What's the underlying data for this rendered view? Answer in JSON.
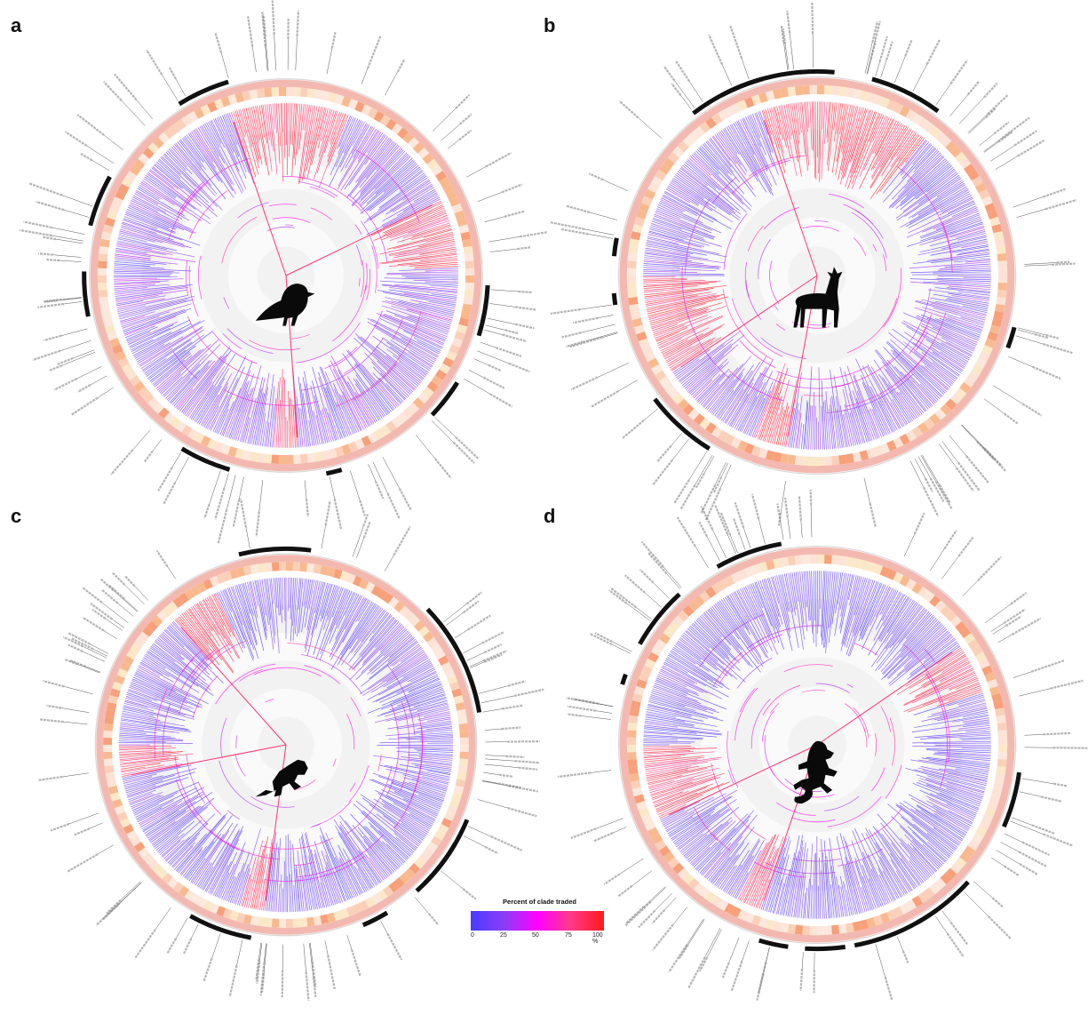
{
  "panels": [
    {
      "letter": "a",
      "animal": "bird-icon"
    },
    {
      "letter": "b",
      "animal": "deer-icon"
    },
    {
      "letter": "c",
      "animal": "frog-icon"
    },
    {
      "letter": "d",
      "animal": "lizard-icon"
    }
  ],
  "legend": {
    "title": "Percent of clade traded",
    "ticks": [
      "0",
      "25",
      "50",
      "75",
      "100 %"
    ],
    "colors": [
      "#4a3cff",
      "#8a3ef5",
      "#ff00ff",
      "#ff3a8a",
      "#ff1a1a"
    ]
  }
}
